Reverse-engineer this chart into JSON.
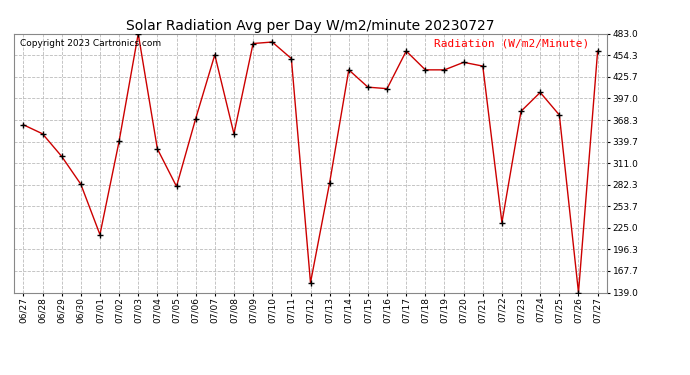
{
  "title": "Solar Radiation Avg per Day W/m2/minute 20230727",
  "copyright": "Copyright 2023 Cartronics.com",
  "legend_label": "Radiation (W/m2/Minute)",
  "dates": [
    "06/27",
    "06/28",
    "06/29",
    "06/30",
    "07/01",
    "07/02",
    "07/03",
    "07/04",
    "07/05",
    "07/06",
    "07/07",
    "07/08",
    "07/09",
    "07/10",
    "07/11",
    "07/12",
    "07/13",
    "07/14",
    "07/15",
    "07/16",
    "07/17",
    "07/18",
    "07/19",
    "07/20",
    "07/21",
    "07/22",
    "07/23",
    "07/24",
    "07/25",
    "07/26",
    "07/27"
  ],
  "values": [
    362,
    350,
    320,
    283,
    216,
    340,
    483,
    330,
    280,
    370,
    455,
    350,
    470,
    472,
    450,
    152,
    285,
    435,
    412,
    410,
    460,
    435,
    435,
    445,
    440,
    232,
    380,
    405,
    375,
    139,
    460
  ],
  "line_color": "#cc0000",
  "marker_color": "#000000",
  "grid_color": "#bbbbbb",
  "bg_color": "#ffffff",
  "yticks": [
    139.0,
    167.7,
    196.3,
    225.0,
    253.7,
    282.3,
    311.0,
    339.7,
    368.3,
    397.0,
    425.7,
    454.3,
    483.0
  ],
  "ymin": 139.0,
  "ymax": 483.0,
  "title_fontsize": 10,
  "copyright_fontsize": 6.5,
  "legend_fontsize": 8,
  "tick_fontsize": 6.5
}
